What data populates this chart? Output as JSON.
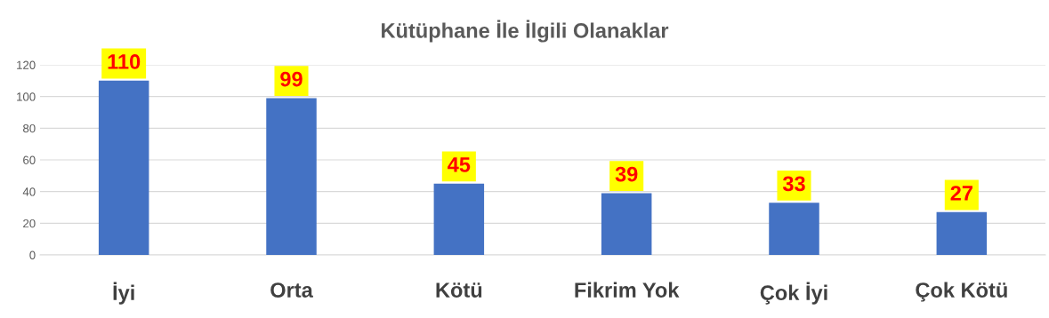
{
  "chart_data": {
    "type": "bar",
    "title": "Kütüphane İle İlgili Olanaklar",
    "categories": [
      "İyi",
      "Orta",
      "Kötü",
      "Fikrim Yok",
      "Çok İyi",
      "Çok Kötü"
    ],
    "values": [
      110,
      99,
      45,
      39,
      33,
      27
    ],
    "color": "#4472c4",
    "ylim": [
      0,
      120
    ],
    "yticks": [
      0,
      20,
      40,
      60,
      80,
      100,
      120
    ],
    "grid": "y",
    "data_labels": true
  }
}
